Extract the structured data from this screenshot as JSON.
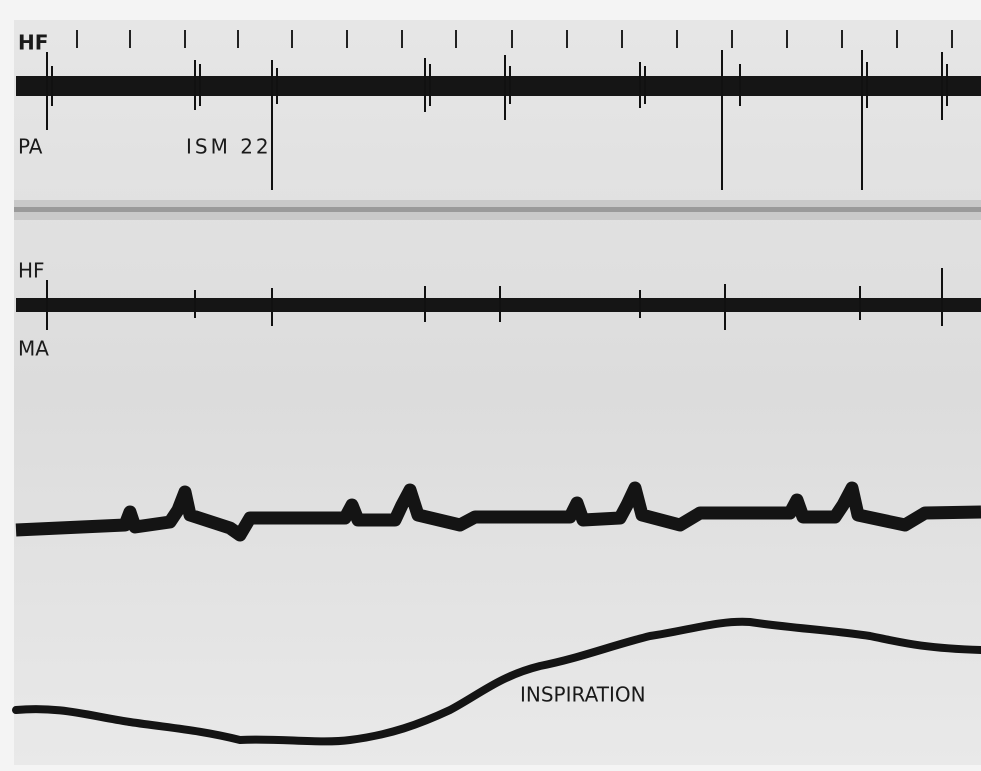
{
  "traces": [
    {
      "label": "HF",
      "sublabel": "PA",
      "annotation": "ISM 22"
    },
    {
      "label": "HF",
      "sublabel": "MA"
    }
  ],
  "respiration": {
    "label": "INSPIRATION"
  }
}
